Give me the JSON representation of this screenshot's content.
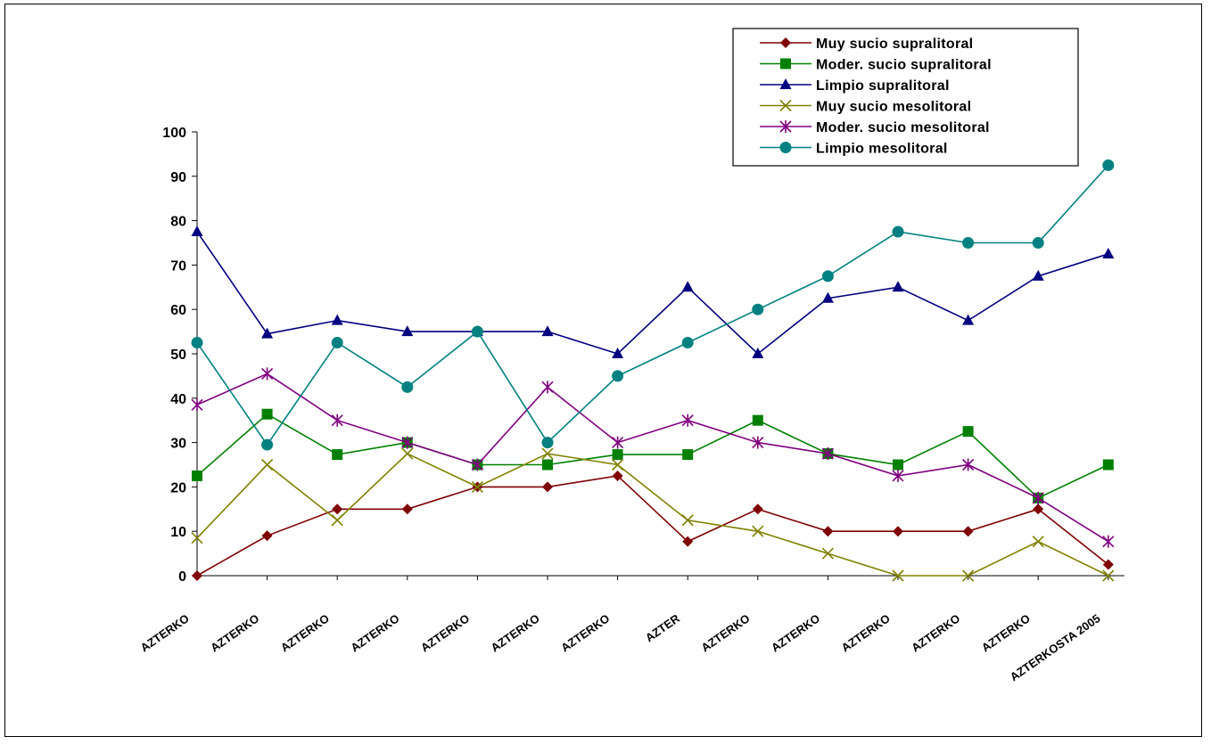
{
  "chart_data": {
    "type": "line",
    "title": "",
    "xlabel": "",
    "ylabel": "",
    "ylim": [
      0,
      100
    ],
    "yticks": [
      0,
      10,
      20,
      30,
      40,
      50,
      60,
      70,
      80,
      90,
      100
    ],
    "grid": false,
    "legend_position": "top-right",
    "categories": [
      "AZTERKO",
      "AZTERKO",
      "AZTERKO",
      "AZTERKO",
      "AZTERKO",
      "AZTERKO",
      "AZTERKO",
      "AZTER",
      "AZTERKO",
      "AZTERKO",
      "AZTERKO",
      "AZTERKO",
      "AZTERKO",
      "AZTERKOSTA 2005"
    ],
    "series": [
      {
        "name": "Muy sucio supralitoral",
        "color": "#7f0000",
        "marker": "diamond",
        "values": [
          0,
          9,
          15,
          15,
          20,
          20,
          22.5,
          7.7,
          15,
          10,
          10,
          10,
          15,
          2.5
        ]
      },
      {
        "name": "Moder. sucio supralitoral",
        "color": "#008000",
        "marker": "square",
        "values": [
          22.5,
          36.4,
          27.3,
          30,
          25,
          25,
          27.3,
          27.3,
          35,
          27.5,
          25,
          32.5,
          17.5,
          25
        ]
      },
      {
        "name": "Limpio supralitoral",
        "color": "#000080",
        "marker": "triangle",
        "values": [
          77.5,
          54.5,
          57.5,
          55,
          55,
          55,
          50,
          65,
          50,
          62.5,
          65,
          57.5,
          67.5,
          72.5
        ]
      },
      {
        "name": "Muy sucio mesolitoral",
        "color": "#808000",
        "marker": "x",
        "values": [
          8.5,
          25,
          12.5,
          27.5,
          20,
          27.5,
          25,
          12.5,
          10,
          5,
          0,
          0,
          7.7,
          0
        ]
      },
      {
        "name": "Moder. sucio mesolitoral",
        "color": "#800080",
        "marker": "star",
        "values": [
          38.5,
          45.5,
          35,
          30,
          25,
          42.5,
          30,
          35,
          30,
          27.5,
          22.5,
          25,
          17.5,
          7.7
        ]
      },
      {
        "name": "Limpio mesolitoral",
        "color": "#008080",
        "marker": "circle",
        "values": [
          52.5,
          29.5,
          52.5,
          42.5,
          55,
          30,
          45,
          52.5,
          60,
          67.5,
          77.5,
          75,
          75,
          92.5
        ]
      }
    ]
  }
}
